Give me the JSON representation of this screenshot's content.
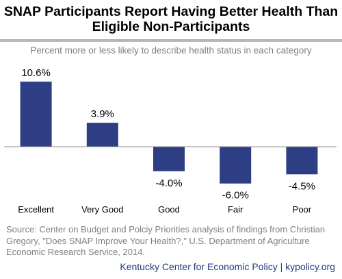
{
  "title": [
    "SNAP Participants Report Having Better Health Than",
    "Eligible Non-Participants"
  ],
  "subtitle": "Percent more or less likely to describe health status in each category",
  "source": "Source: Center on Budget and Polciy Priorities analysis of findings from Christian Gregory, \"Does SNAP Improve Your Health?,\" U.S. Department of Agriculture Economic Research Service, 2014.",
  "footer": "Kentucky Center for Economic Policy | kypolicy.org",
  "colors": {
    "bar": "#2d3e85",
    "axis": "#8c8c8c",
    "accent_bar": "#b7b7b7"
  },
  "chart_data": {
    "type": "bar",
    "categories": [
      "Excellent",
      "Very Good",
      "Good",
      "Fair",
      "Poor"
    ],
    "values": [
      10.6,
      3.9,
      -4.0,
      -6.0,
      -4.5
    ],
    "data_labels": [
      "10.6%",
      "3.9%",
      "-4.0%",
      "-6.0%",
      "-4.5%"
    ],
    "title": "SNAP Participants Report Having Better Health Than Eligible Non-Participants",
    "subtitle": "Percent more or less likely to describe health status in each category",
    "ylim": [
      -6.5,
      12.5
    ],
    "grid": false,
    "legend": "none"
  }
}
